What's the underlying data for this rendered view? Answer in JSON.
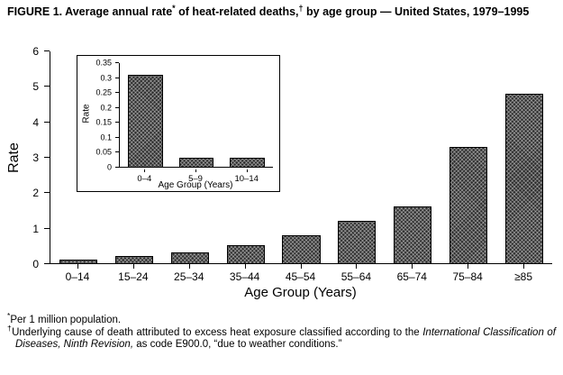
{
  "title": {
    "pre": "FIGURE 1. Average annual rate",
    "sup1": "*",
    "mid": " of heat-related deaths,",
    "sup2": "†",
    "post": " by age group — United States, 1979–1995"
  },
  "chart_data": [
    {
      "type": "bar",
      "role": "main",
      "categories": [
        "0–14",
        "15–24",
        "25–34",
        "35–44",
        "45–54",
        "55–64",
        "65–74",
        "75–84",
        "≥85"
      ],
      "values": [
        0.1,
        0.2,
        0.3,
        0.5,
        0.8,
        1.2,
        1.6,
        3.3,
        4.8
      ],
      "xlabel": "Age Group (Years)",
      "ylabel": "Rate",
      "ylim": [
        0,
        6
      ],
      "ytick_labels": [
        "0",
        "1",
        "2",
        "3",
        "4",
        "5",
        "6"
      ],
      "grid": false,
      "legend": "none",
      "bar_style": "dark-crosshatch"
    },
    {
      "type": "bar",
      "role": "inset",
      "categories": [
        "0–4",
        "5–9",
        "10–14"
      ],
      "values": [
        0.31,
        0.03,
        0.03
      ],
      "xlabel": "Age Group (Years)",
      "ylabel": "Rate",
      "ylim": [
        0,
        0.35
      ],
      "ytick_labels": [
        "0",
        "0.05",
        "0.1",
        "0.15",
        "0.2",
        "0.25",
        "0.3",
        "0.35"
      ],
      "grid": false,
      "legend": "none",
      "bar_style": "dark-crosshatch"
    }
  ],
  "footnotes": {
    "note1": {
      "symbol": "*",
      "text": "Per 1 million population."
    },
    "note2": {
      "symbol": "†",
      "pre": "Underlying cause of death attributed to excess heat exposure classified according to the ",
      "italic": "International Classification of Diseases, Ninth Revision,",
      "post": " as code E900.0, “due to weather conditions.”"
    }
  },
  "colors": {
    "bar_fill": "#2f2f2f",
    "axis": "#000000",
    "background": "#ffffff"
  }
}
